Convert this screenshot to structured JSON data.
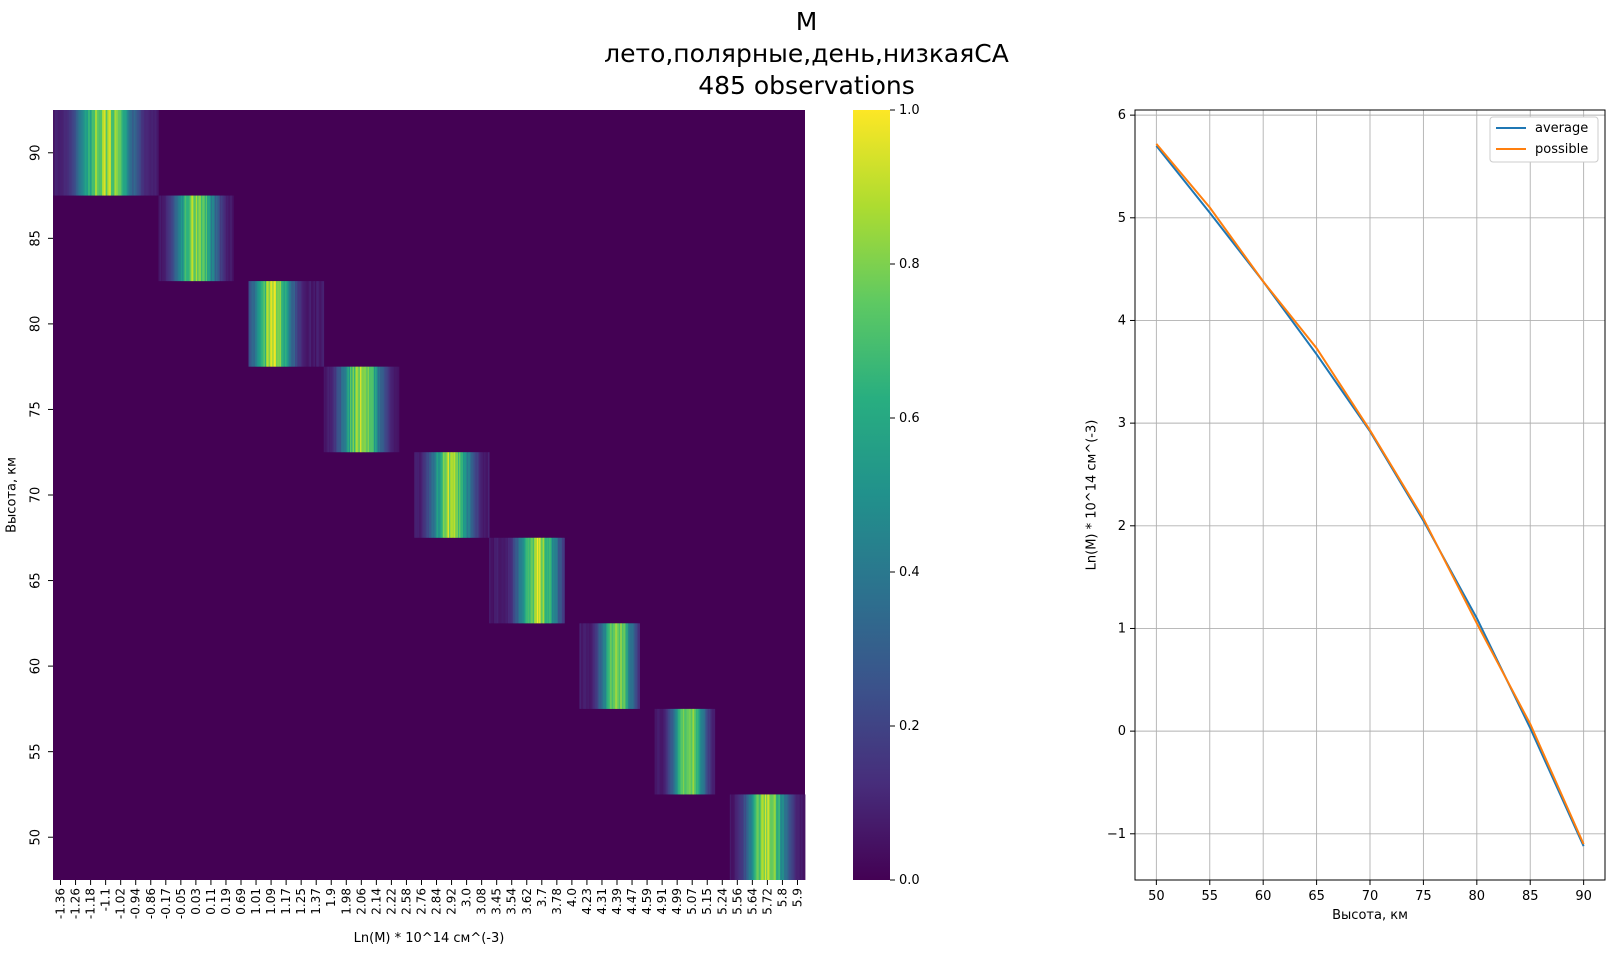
{
  "titles": [
    "M",
    "лето,полярные,день,низкаяСА",
    "485 observations"
  ],
  "chart_data": [
    {
      "type": "heatmap",
      "ylabel": "Высота, км",
      "xlabel": "Ln(M) * 10^14 см^(-3)",
      "y_tick_labels": [
        "90",
        "85",
        "80",
        "75",
        "70",
        "65",
        "60",
        "55",
        "50"
      ],
      "x_tick_labels": [
        "-1.36",
        "-1.26",
        "-1.18",
        "-1.1",
        "-1.02",
        "-0.94",
        "-0.86",
        "-0.17",
        "-0.05",
        "0.03",
        "0.11",
        "0.19",
        "0.69",
        "1.01",
        "1.09",
        "1.17",
        "1.25",
        "1.37",
        "1.9",
        "1.98",
        "2.06",
        "2.14",
        "2.22",
        "2.58",
        "2.76",
        "2.84",
        "2.92",
        "3.0",
        "3.08",
        "3.45",
        "3.54",
        "3.62",
        "3.7",
        "3.78",
        "4.0",
        "4.23",
        "4.31",
        "4.39",
        "4.47",
        "4.59",
        "4.91",
        "4.99",
        "5.07",
        "5.15",
        "5.24",
        "5.56",
        "5.64",
        "5.72",
        "5.8",
        "5.9"
      ],
      "colorbar": {
        "min": 0.0,
        "max": 1.0,
        "ticks": [
          "0.0",
          "0.2",
          "0.4",
          "0.6",
          "0.8",
          "1.0"
        ],
        "colormap": "viridis"
      },
      "rows": [
        {
          "altitude": 90,
          "lnM_min": -1.36,
          "lnM_max": -0.86,
          "peak": -1.1
        },
        {
          "altitude": 85,
          "lnM_min": -0.17,
          "lnM_max": 0.19,
          "peak": 0.03
        },
        {
          "altitude": 80,
          "lnM_min": 1.01,
          "lnM_max": 1.37,
          "peak": 1.1
        },
        {
          "altitude": 75,
          "lnM_min": 1.9,
          "lnM_max": 2.22,
          "peak": 2.06
        },
        {
          "altitude": 70,
          "lnM_min": 2.76,
          "lnM_max": 3.08,
          "peak": 2.92
        },
        {
          "altitude": 65,
          "lnM_min": 3.45,
          "lnM_max": 3.78,
          "peak": 3.68
        },
        {
          "altitude": 60,
          "lnM_min": 4.23,
          "lnM_max": 4.47,
          "peak": 4.39
        },
        {
          "altitude": 55,
          "lnM_min": 4.91,
          "lnM_max": 5.15,
          "peak": 5.05
        },
        {
          "altitude": 50,
          "lnM_min": 5.56,
          "lnM_max": 5.9,
          "peak": 5.72
        }
      ]
    },
    {
      "type": "line",
      "xlabel": "Высота, км",
      "ylabel": "Ln(M) * 10^14 см^(-3)",
      "x": [
        50,
        55,
        60,
        65,
        70,
        75,
        80,
        85,
        90
      ],
      "xlim": [
        48,
        92
      ],
      "ylim": [
        -1.45,
        6.05
      ],
      "x_ticks": [
        50,
        55,
        60,
        65,
        70,
        75,
        80,
        85,
        90
      ],
      "y_ticks": [
        -1,
        0,
        1,
        2,
        3,
        4,
        5,
        6
      ],
      "y_tick_labels": [
        "−1",
        "0",
        "1",
        "2",
        "3",
        "4",
        "5",
        "6"
      ],
      "grid": true,
      "legend_position": "upper right",
      "series": [
        {
          "name": "average",
          "color": "#1f77b4",
          "values": [
            5.7,
            5.05,
            4.38,
            3.67,
            2.92,
            2.05,
            1.1,
            0.03,
            -1.12
          ]
        },
        {
          "name": "possible",
          "color": "#ff7f0e",
          "values": [
            5.72,
            5.1,
            4.38,
            3.73,
            2.93,
            2.07,
            1.05,
            0.07,
            -1.1
          ]
        }
      ]
    }
  ]
}
